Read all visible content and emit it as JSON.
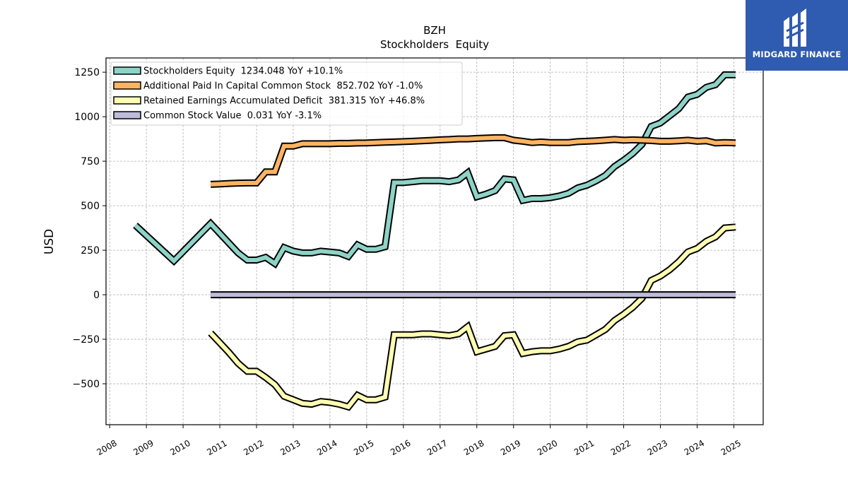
{
  "brand": {
    "name": "MIDGARD FINANCE",
    "bg": "#2f5bb0"
  },
  "chart_data": {
    "type": "line",
    "title": "BZH",
    "subtitle": "Stockholders  Equity",
    "ylabel": "USD",
    "xlabel": "",
    "xlim": [
      2007.9,
      2025.8
    ],
    "ylim": [
      -730,
      1330
    ],
    "yticks": [
      -500,
      -250,
      0,
      250,
      500,
      750,
      1000,
      1250
    ],
    "ytick_labels": [
      "−500",
      "−250",
      "0",
      "250",
      "500",
      "750",
      "1000",
      "1250"
    ],
    "xticks": [
      2008,
      2009,
      2010,
      2011,
      2012,
      2013,
      2014,
      2015,
      2016,
      2017,
      2018,
      2019,
      2020,
      2021,
      2022,
      2023,
      2024,
      2025
    ],
    "grid": true,
    "legend_position": "top-left",
    "series": [
      {
        "name": "Stockholders Equity  1234.048 YoY +10.1%",
        "color": "#8dd3c7",
        "points": [
          [
            2008.7,
            390
          ],
          [
            2009.75,
            190
          ],
          [
            2010.75,
            400
          ],
          [
            2011.5,
            235
          ],
          [
            2011.75,
            195
          ],
          [
            2012.0,
            195
          ],
          [
            2012.25,
            210
          ],
          [
            2012.5,
            175
          ],
          [
            2012.75,
            265
          ],
          [
            2013.0,
            245
          ],
          [
            2013.25,
            235
          ],
          [
            2013.5,
            235
          ],
          [
            2013.75,
            245
          ],
          [
            2014.0,
            240
          ],
          [
            2014.25,
            235
          ],
          [
            2014.5,
            215
          ],
          [
            2014.75,
            280
          ],
          [
            2015.0,
            255
          ],
          [
            2015.25,
            255
          ],
          [
            2015.5,
            270
          ],
          [
            2015.75,
            630
          ],
          [
            2016.0,
            630
          ],
          [
            2016.25,
            635
          ],
          [
            2016.5,
            640
          ],
          [
            2016.75,
            640
          ],
          [
            2017.0,
            640
          ],
          [
            2017.25,
            635
          ],
          [
            2017.5,
            645
          ],
          [
            2017.75,
            685
          ],
          [
            2018.0,
            550
          ],
          [
            2018.25,
            565
          ],
          [
            2018.5,
            585
          ],
          [
            2018.75,
            650
          ],
          [
            2019.0,
            645
          ],
          [
            2019.25,
            530
          ],
          [
            2019.5,
            540
          ],
          [
            2019.75,
            540
          ],
          [
            2020.0,
            545
          ],
          [
            2020.25,
            555
          ],
          [
            2020.5,
            570
          ],
          [
            2020.75,
            600
          ],
          [
            2021.0,
            615
          ],
          [
            2021.25,
            640
          ],
          [
            2021.5,
            670
          ],
          [
            2021.75,
            720
          ],
          [
            2022.0,
            755
          ],
          [
            2022.25,
            795
          ],
          [
            2022.5,
            845
          ],
          [
            2022.75,
            945
          ],
          [
            2023.0,
            965
          ],
          [
            2023.25,
            1005
          ],
          [
            2023.5,
            1045
          ],
          [
            2023.75,
            1110
          ],
          [
            2024.0,
            1125
          ],
          [
            2024.25,
            1165
          ],
          [
            2024.5,
            1180
          ],
          [
            2024.75,
            1235
          ],
          [
            2025.05,
            1235
          ]
        ]
      },
      {
        "name": "Additional Paid In Capital Common Stock  852.702 YoY -1.0%",
        "color": "#fdb462",
        "points": [
          [
            2010.75,
            620
          ],
          [
            2011.0,
            622
          ],
          [
            2011.25,
            625
          ],
          [
            2011.5,
            627
          ],
          [
            2011.75,
            628
          ],
          [
            2012.0,
            628
          ],
          [
            2012.25,
            690
          ],
          [
            2012.5,
            690
          ],
          [
            2012.75,
            835
          ],
          [
            2013.0,
            835
          ],
          [
            2013.25,
            848
          ],
          [
            2013.5,
            848
          ],
          [
            2013.75,
            848
          ],
          [
            2014.0,
            848
          ],
          [
            2014.25,
            850
          ],
          [
            2014.5,
            850
          ],
          [
            2014.75,
            852
          ],
          [
            2015.0,
            853
          ],
          [
            2015.25,
            855
          ],
          [
            2015.5,
            857
          ],
          [
            2015.75,
            858
          ],
          [
            2016.0,
            860
          ],
          [
            2016.25,
            862
          ],
          [
            2016.5,
            865
          ],
          [
            2016.75,
            867
          ],
          [
            2017.0,
            870
          ],
          [
            2017.25,
            872
          ],
          [
            2017.5,
            875
          ],
          [
            2017.75,
            875
          ],
          [
            2018.0,
            878
          ],
          [
            2018.25,
            880
          ],
          [
            2018.5,
            882
          ],
          [
            2018.75,
            882
          ],
          [
            2019.0,
            868
          ],
          [
            2019.25,
            862
          ],
          [
            2019.5,
            855
          ],
          [
            2019.75,
            858
          ],
          [
            2020.0,
            855
          ],
          [
            2020.25,
            855
          ],
          [
            2020.5,
            855
          ],
          [
            2020.75,
            860
          ],
          [
            2021.0,
            862
          ],
          [
            2021.25,
            865
          ],
          [
            2021.5,
            868
          ],
          [
            2021.75,
            872
          ],
          [
            2022.0,
            868
          ],
          [
            2022.25,
            870
          ],
          [
            2022.5,
            868
          ],
          [
            2022.75,
            866
          ],
          [
            2023.0,
            862
          ],
          [
            2023.25,
            862
          ],
          [
            2023.5,
            865
          ],
          [
            2023.75,
            868
          ],
          [
            2024.0,
            862
          ],
          [
            2024.25,
            865
          ],
          [
            2024.5,
            852
          ],
          [
            2024.75,
            855
          ],
          [
            2025.05,
            853
          ]
        ]
      },
      {
        "name": "Retained Earnings Accumulated Deficit  381.315 YoY +46.8%",
        "color": "#ffffb3",
        "points": [
          [
            2010.75,
            -215
          ],
          [
            2011.0,
            -270
          ],
          [
            2011.25,
            -325
          ],
          [
            2011.5,
            -385
          ],
          [
            2011.75,
            -430
          ],
          [
            2012.0,
            -430
          ],
          [
            2012.25,
            -465
          ],
          [
            2012.5,
            -505
          ],
          [
            2012.75,
            -570
          ],
          [
            2013.0,
            -590
          ],
          [
            2013.25,
            -610
          ],
          [
            2013.5,
            -615
          ],
          [
            2013.75,
            -600
          ],
          [
            2014.0,
            -605
          ],
          [
            2014.25,
            -615
          ],
          [
            2014.5,
            -630
          ],
          [
            2014.75,
            -565
          ],
          [
            2015.0,
            -590
          ],
          [
            2015.25,
            -590
          ],
          [
            2015.5,
            -575
          ],
          [
            2015.75,
            -225
          ],
          [
            2016.0,
            -225
          ],
          [
            2016.25,
            -225
          ],
          [
            2016.5,
            -220
          ],
          [
            2016.75,
            -220
          ],
          [
            2017.0,
            -225
          ],
          [
            2017.25,
            -230
          ],
          [
            2017.5,
            -220
          ],
          [
            2017.75,
            -180
          ],
          [
            2018.0,
            -320
          ],
          [
            2018.25,
            -305
          ],
          [
            2018.5,
            -290
          ],
          [
            2018.75,
            -230
          ],
          [
            2019.0,
            -225
          ],
          [
            2019.25,
            -330
          ],
          [
            2019.5,
            -320
          ],
          [
            2019.75,
            -315
          ],
          [
            2020.0,
            -315
          ],
          [
            2020.25,
            -305
          ],
          [
            2020.5,
            -290
          ],
          [
            2020.75,
            -265
          ],
          [
            2021.0,
            -255
          ],
          [
            2021.25,
            -225
          ],
          [
            2021.5,
            -195
          ],
          [
            2021.75,
            -145
          ],
          [
            2022.0,
            -110
          ],
          [
            2022.25,
            -70
          ],
          [
            2022.5,
            -20
          ],
          [
            2022.75,
            80
          ],
          [
            2023.0,
            105
          ],
          [
            2023.25,
            140
          ],
          [
            2023.5,
            185
          ],
          [
            2023.75,
            240
          ],
          [
            2024.0,
            260
          ],
          [
            2024.25,
            300
          ],
          [
            2024.5,
            325
          ],
          [
            2024.75,
            375
          ],
          [
            2025.05,
            380
          ]
        ]
      },
      {
        "name": "Common Stock Value  0.031 YoY -3.1%",
        "color": "#bebada",
        "points": [
          [
            2010.75,
            0
          ],
          [
            2025.05,
            0
          ]
        ]
      }
    ]
  }
}
